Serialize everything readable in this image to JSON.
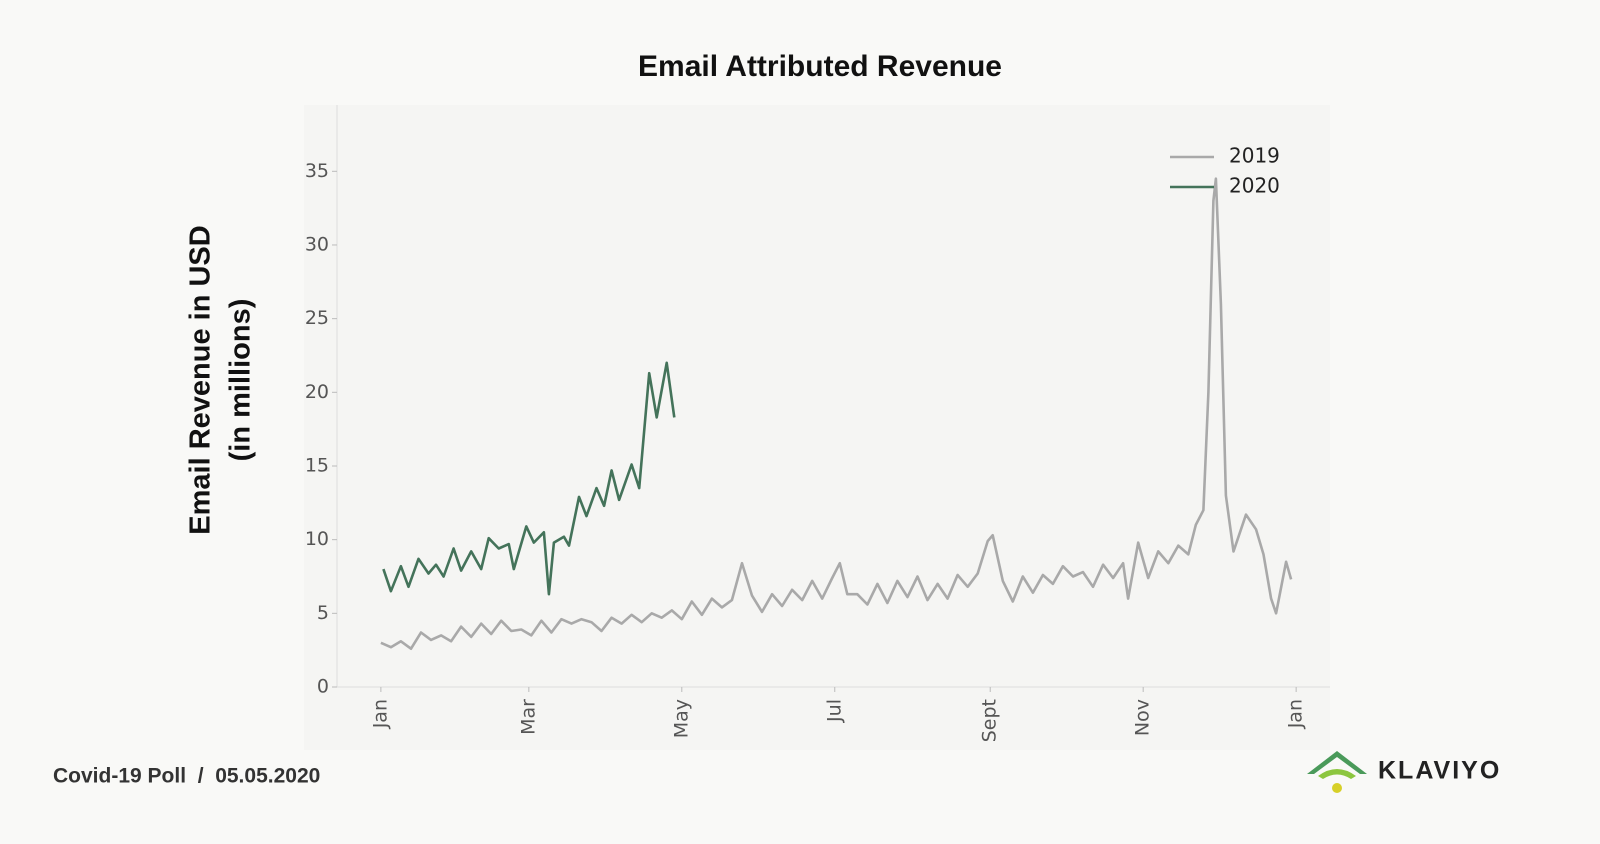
{
  "chart_data": {
    "type": "line",
    "title": "Email Attributed Revenue",
    "ylabel": [
      "Email Revenue in USD",
      "(in millions)"
    ],
    "xlim": [
      -17.5,
      378.5
    ],
    "xticks": [
      {
        "value": 0,
        "label": "Jan"
      },
      {
        "value": 59,
        "label": "Mar"
      },
      {
        "value": 120,
        "label": "May"
      },
      {
        "value": 181,
        "label": "Jul"
      },
      {
        "value": 243,
        "label": "Sept"
      },
      {
        "value": 304,
        "label": "Nov"
      },
      {
        "value": 365,
        "label": "Jan"
      }
    ],
    "ylim": [
      0,
      39.5
    ],
    "yticks": [
      0,
      5,
      10,
      15,
      20,
      25,
      30,
      35
    ],
    "legend": "upper right",
    "series": [
      {
        "name": "2019",
        "color": "#a9a9a9",
        "x": [
          0,
          4,
          8,
          12,
          16,
          20,
          24,
          28,
          32,
          36,
          40,
          44,
          48,
          52,
          56,
          60,
          64,
          68,
          72,
          76,
          80,
          84,
          88,
          92,
          96,
          100,
          104,
          108,
          112,
          116,
          120,
          124,
          128,
          132,
          136,
          140,
          144,
          148,
          152,
          156,
          160,
          164,
          168,
          172,
          176,
          180,
          183,
          186,
          190,
          194,
          198,
          202,
          206,
          210,
          214,
          218,
          222,
          226,
          230,
          234,
          238,
          242,
          244,
          248,
          252,
          256,
          260,
          264,
          268,
          272,
          276,
          280,
          284,
          288,
          292,
          296,
          298,
          302,
          306,
          310,
          314,
          318,
          322,
          325,
          328,
          330,
          332,
          333,
          335,
          337,
          340,
          345,
          349,
          352,
          355,
          357,
          361,
          363
        ],
        "values": [
          3.0,
          2.7,
          3.1,
          2.6,
          3.7,
          3.2,
          3.5,
          3.1,
          4.1,
          3.4,
          4.3,
          3.6,
          4.5,
          3.8,
          3.9,
          3.5,
          4.5,
          3.7,
          4.6,
          4.3,
          4.6,
          4.4,
          3.8,
          4.7,
          4.3,
          4.9,
          4.4,
          5.0,
          4.7,
          5.2,
          4.6,
          5.8,
          4.9,
          6.0,
          5.4,
          5.9,
          8.4,
          6.2,
          5.1,
          6.3,
          5.5,
          6.6,
          5.9,
          7.2,
          6.0,
          7.4,
          8.4,
          6.3,
          6.3,
          5.6,
          7.0,
          5.7,
          7.2,
          6.1,
          7.5,
          5.9,
          7.0,
          6.0,
          7.6,
          6.8,
          7.7,
          9.9,
          10.3,
          7.2,
          5.8,
          7.5,
          6.4,
          7.6,
          7.0,
          8.2,
          7.5,
          7.8,
          6.8,
          8.3,
          7.4,
          8.4,
          6.0,
          9.8,
          7.4,
          9.2,
          8.4,
          9.6,
          9.0,
          11.0,
          12.0,
          20.0,
          33.0,
          34.5,
          26.0,
          13.0,
          9.2,
          11.7,
          10.7,
          9.0,
          6.0,
          5.0,
          8.5,
          7.3
        ]
      },
      {
        "name": "2020",
        "color": "#44735a",
        "x": [
          1,
          4,
          8,
          11,
          15,
          19,
          22,
          25,
          29,
          32,
          36,
          40,
          43,
          47,
          51,
          53,
          58,
          61,
          65,
          67,
          69,
          73,
          75,
          79,
          82,
          86,
          89,
          92,
          95,
          100,
          103,
          107,
          110,
          114,
          117
        ],
        "values": [
          8.0,
          6.5,
          8.2,
          6.8,
          8.7,
          7.7,
          8.3,
          7.5,
          9.4,
          7.9,
          9.2,
          8.0,
          10.1,
          9.4,
          9.7,
          8.0,
          10.9,
          9.8,
          10.5,
          6.3,
          9.8,
          10.2,
          9.6,
          12.9,
          11.6,
          13.5,
          12.3,
          14.7,
          12.7,
          15.1,
          13.5,
          21.3,
          18.3,
          22.0,
          18.3
        ]
      }
    ]
  },
  "footer": {
    "text": "Covid-19 Poll  /  05.05.2020",
    "logo": "KLAVIYO"
  }
}
